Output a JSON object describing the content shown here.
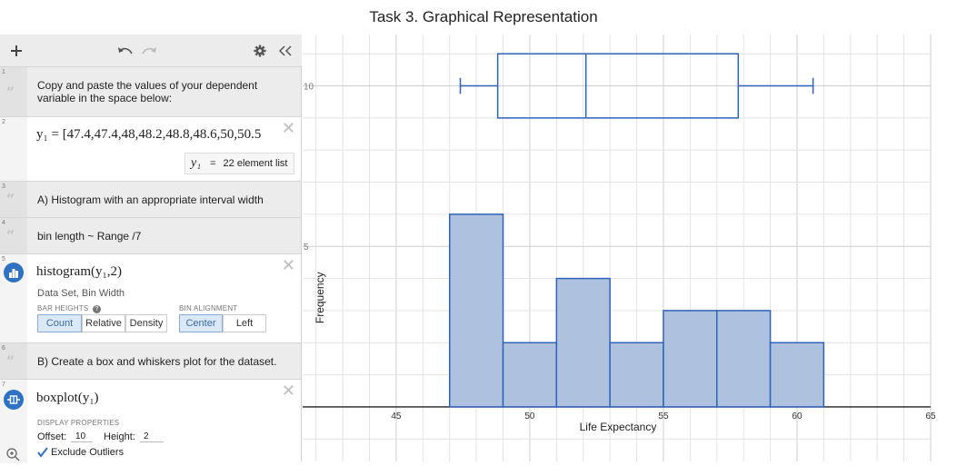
{
  "title": "Task 3. Graphical Representation",
  "toolbar": {
    "add_icon": "plus-icon",
    "undo_icon": "undo-icon",
    "redo_icon": "redo-icon",
    "settings_icon": "gear-icon",
    "collapse_icon": "double-chevron-left-icon"
  },
  "expressions": {
    "e1": {
      "index": "1",
      "text": "Copy and paste the values of your dependent variable in the space below:"
    },
    "e2": {
      "index": "2",
      "formula": "y₁ = [47.4,47.4,48,48.2,48.8,48.6,50,50.5",
      "result_lhs": "y₁",
      "result_eq": "=",
      "result_rhs": "22 element list"
    },
    "e3": {
      "index": "3",
      "text": "A) Histogram with an appropriate interval width"
    },
    "e4": {
      "index": "4",
      "text": "bin length ~ Range /7"
    },
    "e5": {
      "index": "5",
      "formula": "histogram(y₁,2)",
      "hint": "Data Set, Bin Width",
      "bar_heights_label": "BAR HEIGHTS",
      "bar_heights_help": "?",
      "bar_heights": [
        "Count",
        "Relative",
        "Density"
      ],
      "bin_alignment_label": "BIN ALIGNMENT",
      "bin_alignment": [
        "Center",
        "Left"
      ]
    },
    "e6": {
      "index": "6",
      "text": "B) Create a box and whiskers plot for the dataset."
    },
    "e7": {
      "index": "7",
      "formula": "boxplot(y₁)",
      "display_label": "DISPLAY PROPERTIES",
      "offset_label": "Offset:",
      "offset_value": "10",
      "height_label": "Height:",
      "height_value": "2",
      "exclude_outliers": "Exclude Outliers"
    }
  },
  "colors": {
    "fill": "#aec2e0",
    "stroke": "#2f63b8",
    "grid": "#e4e4e4",
    "axis": "#222"
  },
  "chart_data": {
    "type": "bar",
    "xlabel": "Life Expectancy",
    "ylabel": "Frequency",
    "xlim": [
      41.5,
      65
    ],
    "ylim": [
      -1.7,
      11.6
    ],
    "x_ticks": [
      45,
      50,
      55,
      60,
      65
    ],
    "y_ticks": [
      5,
      10
    ],
    "grid": true,
    "histogram": {
      "bin_width": 2,
      "bins": [
        {
          "start": 47,
          "end": 49,
          "count": 6
        },
        {
          "start": 49,
          "end": 51,
          "count": 2
        },
        {
          "start": 51,
          "end": 53,
          "count": 4
        },
        {
          "start": 53,
          "end": 55,
          "count": 2
        },
        {
          "start": 55,
          "end": 57,
          "count": 3
        },
        {
          "start": 57,
          "end": 59,
          "count": 3
        },
        {
          "start": 59,
          "end": 61,
          "count": 2
        }
      ]
    },
    "boxplot": {
      "min": 47.4,
      "q1": 48.8,
      "median": 52.1,
      "q3": 57.8,
      "max": 60.6,
      "offset": 10,
      "height": 2
    }
  }
}
